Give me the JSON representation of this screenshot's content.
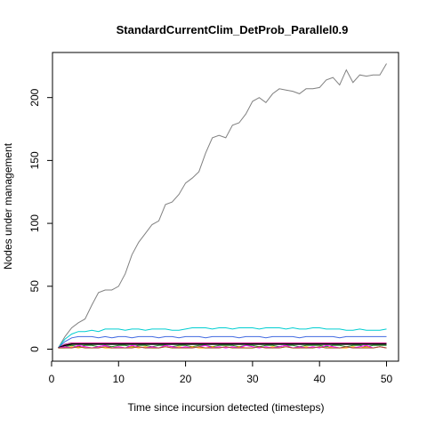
{
  "chart_data": {
    "type": "line",
    "title": "StandardCurrentClim_DetProb_Parallel0.9",
    "xlabel": "Time since incursion detected (timesteps)",
    "ylabel": "Nodes under management",
    "xlim": [
      1,
      50
    ],
    "ylim": [
      0,
      227
    ],
    "xticks": [
      0,
      10,
      20,
      30,
      40,
      50
    ],
    "yticks": [
      0,
      50,
      100,
      150,
      200
    ],
    "grid": false,
    "legend": "none",
    "series": [
      {
        "color": "#808080",
        "x": [
          1,
          2,
          3,
          4,
          5,
          6,
          7,
          8,
          9,
          10,
          11,
          12,
          13,
          14,
          15,
          16,
          17,
          18,
          19,
          20,
          21,
          22,
          23,
          24,
          25,
          26,
          27,
          28,
          29,
          30,
          31,
          32,
          33,
          34,
          35,
          36,
          37,
          38,
          39,
          40,
          41,
          42,
          43,
          44,
          45,
          46,
          47,
          48,
          49,
          50
        ],
        "y": [
          1,
          10,
          17,
          21,
          24,
          35,
          45,
          47,
          47,
          50,
          60,
          75,
          85,
          92,
          99,
          102,
          115,
          117,
          123,
          132,
          136,
          141,
          156,
          168,
          170,
          168,
          178,
          180,
          187,
          197,
          200,
          196,
          203,
          207,
          206,
          205,
          203,
          207,
          207,
          208,
          214,
          216,
          210,
          222,
          212,
          218,
          217,
          218,
          218,
          227
        ]
      },
      {
        "color": "#00CED1",
        "x": [
          1,
          2,
          3,
          4,
          5,
          6,
          7,
          8,
          9,
          10,
          11,
          12,
          13,
          14,
          15,
          16,
          17,
          18,
          19,
          20,
          21,
          22,
          23,
          24,
          25,
          26,
          27,
          28,
          29,
          30,
          31,
          32,
          33,
          34,
          35,
          36,
          37,
          38,
          39,
          40,
          41,
          42,
          43,
          44,
          45,
          46,
          47,
          48,
          49,
          50
        ],
        "y": [
          1,
          8,
          12,
          14,
          14,
          15,
          14,
          16,
          16,
          16,
          15,
          16,
          16,
          15,
          16,
          16,
          16,
          15,
          15,
          16,
          17,
          17,
          17,
          16,
          17,
          17,
          16,
          17,
          17,
          17,
          16,
          17,
          17,
          17,
          16,
          17,
          16,
          16,
          17,
          17,
          16,
          16,
          16,
          15,
          15,
          16,
          15,
          15,
          15,
          16
        ]
      },
      {
        "color": "#4169E1",
        "x": [
          1,
          2,
          3,
          4,
          5,
          6,
          7,
          8,
          9,
          10,
          11,
          12,
          13,
          14,
          15,
          16,
          17,
          18,
          19,
          20,
          21,
          22,
          23,
          24,
          25,
          26,
          27,
          28,
          29,
          30,
          31,
          32,
          33,
          34,
          35,
          36,
          37,
          38,
          39,
          40,
          41,
          42,
          43,
          44,
          45,
          46,
          47,
          48,
          49,
          50
        ],
        "y": [
          1,
          6,
          9,
          10,
          10,
          10,
          9,
          10,
          9,
          10,
          10,
          9,
          10,
          10,
          10,
          9,
          10,
          10,
          9,
          10,
          10,
          10,
          9,
          10,
          10,
          10,
          10,
          9,
          10,
          10,
          10,
          9,
          10,
          10,
          10,
          10,
          9,
          10,
          10,
          10,
          10,
          10,
          9,
          10,
          10,
          10,
          10,
          10,
          10,
          10
        ]
      },
      {
        "color": "#D02090",
        "x": [
          1,
          2,
          3,
          4,
          5,
          6,
          7,
          8,
          9,
          10,
          11,
          12,
          13,
          14,
          15,
          16,
          17,
          18,
          19,
          20,
          21,
          22,
          23,
          24,
          25,
          26,
          27,
          28,
          29,
          30,
          31,
          32,
          33,
          34,
          35,
          36,
          37,
          38,
          39,
          40,
          41,
          42,
          43,
          44,
          45,
          46,
          47,
          48,
          49,
          50
        ],
        "y": [
          1,
          4,
          5,
          5,
          5,
          5,
          5,
          5,
          5,
          5,
          5,
          5,
          5,
          5,
          5,
          5,
          5,
          5,
          5,
          5,
          5,
          5,
          5,
          5,
          5,
          5,
          5,
          5,
          5,
          5,
          5,
          5,
          5,
          5,
          5,
          5,
          5,
          5,
          5,
          5,
          5,
          5,
          5,
          5,
          5,
          5,
          5,
          5,
          5,
          5
        ]
      },
      {
        "color": "#000000",
        "x": [
          1,
          2,
          3,
          4,
          5,
          6,
          7,
          8,
          9,
          10,
          11,
          12,
          13,
          14,
          15,
          16,
          17,
          18,
          19,
          20,
          21,
          22,
          23,
          24,
          25,
          26,
          27,
          28,
          29,
          30,
          31,
          32,
          33,
          34,
          35,
          36,
          37,
          38,
          39,
          40,
          41,
          42,
          43,
          44,
          45,
          46,
          47,
          48,
          49,
          50
        ],
        "y": [
          1,
          3,
          4,
          4,
          4,
          4,
          4,
          4,
          4,
          4,
          4,
          4,
          4,
          4,
          4,
          4,
          4,
          4,
          4,
          4,
          4,
          4,
          4,
          4,
          4,
          4,
          4,
          4,
          4,
          4,
          4,
          4,
          4,
          4,
          4,
          4,
          4,
          4,
          4,
          4,
          4,
          4,
          4,
          4,
          4,
          4,
          4,
          4,
          4,
          4
        ]
      },
      {
        "color": "#228B22",
        "x": [
          1,
          2,
          3,
          4,
          5,
          6,
          7,
          8,
          9,
          10,
          11,
          12,
          13,
          14,
          15,
          16,
          17,
          18,
          19,
          20,
          21,
          22,
          23,
          24,
          25,
          26,
          27,
          28,
          29,
          30,
          31,
          32,
          33,
          34,
          35,
          36,
          37,
          38,
          39,
          40,
          41,
          42,
          43,
          44,
          45,
          46,
          47,
          48,
          49,
          50
        ],
        "y": [
          1,
          2,
          3,
          2,
          3,
          3,
          2,
          3,
          2,
          3,
          3,
          2,
          3,
          3,
          2,
          3,
          3,
          2,
          3,
          3,
          2,
          3,
          3,
          2,
          3,
          3,
          3,
          2,
          3,
          3,
          2,
          3,
          3,
          2,
          3,
          3,
          2,
          3,
          3,
          3,
          2,
          3,
          3,
          2,
          3,
          3,
          2,
          3,
          3,
          3
        ]
      },
      {
        "color": "#FFA500",
        "x": [
          1,
          2,
          3,
          4,
          5,
          6,
          7,
          8,
          9,
          10,
          11,
          12,
          13,
          14,
          15,
          16,
          17,
          18,
          19,
          20,
          21,
          22,
          23,
          24,
          25,
          26,
          27,
          28,
          29,
          30,
          31,
          32,
          33,
          34,
          35,
          36,
          37,
          38,
          39,
          40,
          41,
          42,
          43,
          44,
          45,
          46,
          47,
          48,
          49,
          50
        ],
        "y": [
          1,
          1,
          2,
          1,
          2,
          1,
          2,
          1,
          1,
          2,
          1,
          2,
          1,
          2,
          1,
          1,
          2,
          1,
          2,
          1,
          2,
          1,
          1,
          2,
          1,
          2,
          1,
          2,
          1,
          1,
          2,
          1,
          2,
          1,
          2,
          1,
          1,
          2,
          1,
          2,
          1,
          2,
          1,
          1,
          2,
          1,
          2,
          1,
          2,
          1
        ]
      },
      {
        "color": "#FF00FF",
        "x": [
          1,
          2,
          3,
          4,
          5,
          6,
          7,
          8,
          9,
          10,
          11,
          12,
          13,
          14,
          15,
          16,
          17,
          18,
          19,
          20,
          21,
          22,
          23,
          24,
          25,
          26,
          27,
          28,
          29,
          30,
          31,
          32,
          33,
          34,
          35,
          36,
          37,
          38,
          39,
          40,
          41,
          42,
          43,
          44,
          45,
          46,
          47,
          48,
          49,
          50
        ],
        "y": [
          1,
          2,
          1,
          3,
          2,
          1,
          2,
          3,
          1,
          2,
          1,
          3,
          2,
          1,
          2,
          1,
          3,
          2,
          1,
          2,
          1,
          2,
          3,
          1,
          2,
          1,
          2,
          1,
          3,
          2,
          1,
          2,
          1,
          2,
          3,
          1,
          2,
          1,
          2,
          1,
          3,
          2,
          1,
          2,
          1,
          2,
          3,
          1,
          2,
          1
        ]
      },
      {
        "color": "#A0522D",
        "x": [
          1,
          2,
          3,
          4,
          5,
          6,
          7,
          8,
          9,
          10,
          11,
          12,
          13,
          14,
          15,
          16,
          17,
          18,
          19,
          20,
          21,
          22,
          23,
          24,
          25,
          26,
          27,
          28,
          29,
          30,
          31,
          32,
          33,
          34,
          35,
          36,
          37,
          38,
          39,
          40,
          41,
          42,
          43,
          44,
          45,
          46,
          47,
          48,
          49,
          50
        ],
        "y": [
          1,
          1,
          1,
          2,
          1,
          1,
          1,
          2,
          1,
          1,
          1,
          1,
          2,
          1,
          1,
          1,
          2,
          1,
          1,
          1,
          1,
          2,
          1,
          1,
          1,
          2,
          1,
          1,
          1,
          1,
          2,
          1,
          1,
          1,
          2,
          1,
          1,
          1,
          1,
          2,
          1,
          1,
          1,
          2,
          1,
          1,
          1,
          1,
          2,
          1
        ]
      }
    ]
  }
}
